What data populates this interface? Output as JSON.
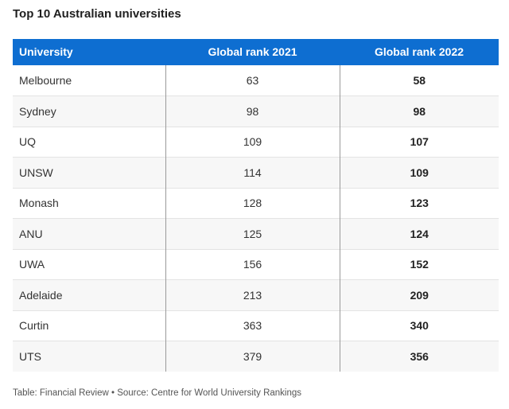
{
  "title": "Top 10 Australian universities",
  "chart_data": {
    "type": "table",
    "title": "Top 10 Australian universities",
    "columns": [
      "University",
      "Global rank 2021",
      "Global rank 2022"
    ],
    "rows": [
      {
        "university": "Melbourne",
        "rank_2021": "63",
        "rank_2022": "58"
      },
      {
        "university": "Sydney",
        "rank_2021": "98",
        "rank_2022": "98"
      },
      {
        "university": "UQ",
        "rank_2021": "109",
        "rank_2022": "107"
      },
      {
        "university": "UNSW",
        "rank_2021": "114",
        "rank_2022": "109"
      },
      {
        "university": "Monash",
        "rank_2021": "128",
        "rank_2022": "123"
      },
      {
        "university": "ANU",
        "rank_2021": "125",
        "rank_2022": "124"
      },
      {
        "university": "UWA",
        "rank_2021": "156",
        "rank_2022": "152"
      },
      {
        "university": "Adelaide",
        "rank_2021": "213",
        "rank_2022": "209"
      },
      {
        "university": "Curtin",
        "rank_2021": "363",
        "rank_2022": "340"
      },
      {
        "university": "UTS",
        "rank_2021": "379",
        "rank_2022": "356"
      }
    ]
  },
  "footer": "Table: Financial Review • Source: Centre for World University Rankings",
  "colors": {
    "header_background": "#0e6ed1",
    "header_text": "#ffffff",
    "stripe": "#f7f7f7"
  }
}
